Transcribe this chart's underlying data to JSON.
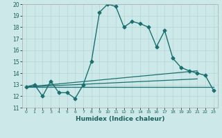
{
  "xlabel": "Humidex (Indice chaleur)",
  "ylabel": "",
  "bg_color": "#cce8e8",
  "line_color": "#1a7070",
  "grid_color": "#b8d8d8",
  "xlim": [
    -0.5,
    23.5
  ],
  "ylim": [
    11,
    20
  ],
  "xticks": [
    0,
    1,
    2,
    3,
    4,
    5,
    6,
    7,
    8,
    9,
    10,
    11,
    12,
    13,
    14,
    15,
    16,
    17,
    18,
    19,
    20,
    21,
    22,
    23
  ],
  "yticks": [
    11,
    12,
    13,
    14,
    15,
    16,
    17,
    18,
    19,
    20
  ],
  "series": [
    {
      "x": [
        0,
        1,
        2,
        3,
        4,
        5,
        6,
        7,
        8,
        9,
        10,
        11,
        12,
        13,
        14,
        15,
        16,
        17,
        18,
        19,
        20,
        21,
        22,
        23
      ],
      "y": [
        12.8,
        13.0,
        12.0,
        13.3,
        12.3,
        12.3,
        11.8,
        13.0,
        15.0,
        19.3,
        20.0,
        19.8,
        18.0,
        18.5,
        18.3,
        18.0,
        16.3,
        17.7,
        15.3,
        14.5,
        14.2,
        14.0,
        13.8,
        12.5
      ],
      "marker": "D",
      "markersize": 2.5,
      "linewidth": 1.0
    },
    {
      "x": [
        0,
        21
      ],
      "y": [
        12.8,
        14.2
      ],
      "marker": null,
      "linewidth": 0.9
    },
    {
      "x": [
        0,
        21
      ],
      "y": [
        12.8,
        13.5
      ],
      "marker": null,
      "linewidth": 0.9
    },
    {
      "x": [
        0,
        23
      ],
      "y": [
        12.8,
        12.8
      ],
      "marker": null,
      "linewidth": 0.9
    }
  ]
}
